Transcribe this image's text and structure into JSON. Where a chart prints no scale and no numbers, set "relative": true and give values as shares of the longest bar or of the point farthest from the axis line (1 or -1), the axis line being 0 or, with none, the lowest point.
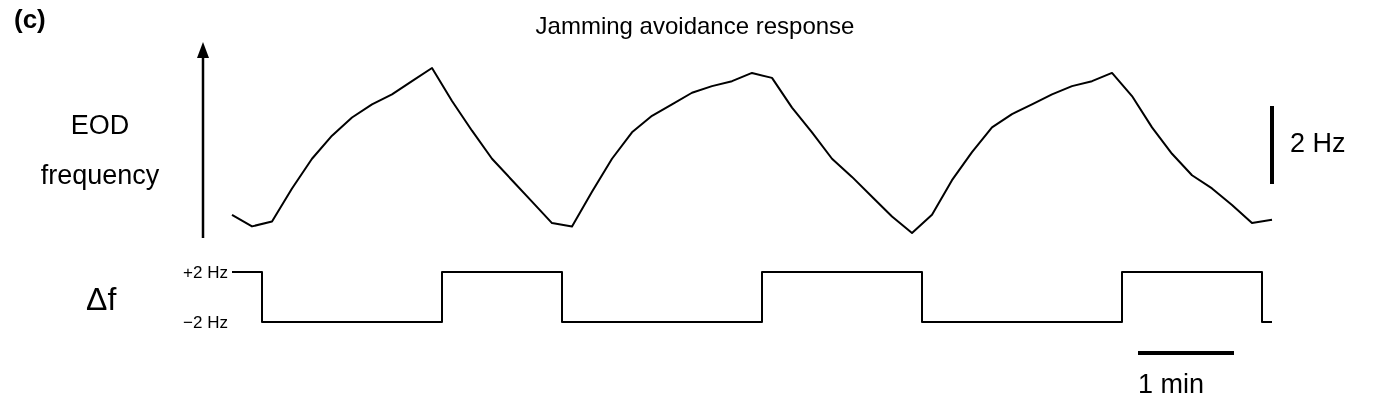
{
  "chart_data": [
    {
      "type": "line",
      "title": "Jamming avoidance response",
      "ylabel": "EOD frequency",
      "relative": true,
      "tick_labels": false,
      "marker": "none",
      "line_style": "solid",
      "annotations": [
        "(c)",
        "2 Hz"
      ],
      "categories": [
        null,
        null,
        null,
        null,
        null,
        null,
        null,
        null,
        null,
        null,
        null,
        null,
        null,
        null,
        null,
        null,
        null,
        null,
        null,
        null,
        null,
        null,
        null,
        null,
        null,
        null,
        null,
        null,
        null,
        null,
        null,
        null,
        null,
        null,
        null,
        null,
        null,
        null,
        null,
        null,
        null,
        null,
        null,
        null,
        null,
        null,
        null,
        null,
        null,
        null,
        null,
        null,
        null
      ],
      "series": [
        {
          "color": "#000000",
          "values": [
            0.11,
            0.04,
            0.07,
            0.27,
            0.45,
            0.59,
            0.7,
            0.78,
            0.84,
            0.92,
            1.0,
            0.8,
            0.62,
            0.45,
            0.32,
            0.19,
            0.06,
            0.04,
            0.25,
            0.45,
            0.61,
            0.71,
            0.78,
            0.85,
            0.89,
            0.92,
            0.97,
            0.94,
            0.76,
            0.61,
            0.45,
            0.34,
            0.22,
            0.1,
            0,
            0.11,
            0.32,
            0.49,
            0.64,
            0.72,
            0.78,
            0.84,
            0.89,
            0.92,
            0.97,
            0.83,
            0.64,
            0.48,
            0.35,
            0.27,
            0.17,
            0.06,
            0.08
          ]
        }
      ]
    },
    {
      "type": "step",
      "ylabel": "Δf",
      "tick_labels": "y",
      "marker": "none",
      "line_style": "solid",
      "annotations": [
        "1 min"
      ],
      "categories": [
        null,
        null,
        null,
        null,
        null,
        null,
        null,
        null,
        null,
        null,
        null,
        null,
        null,
        null,
        null,
        null,
        null,
        null,
        null,
        null,
        null,
        null,
        null,
        null,
        null,
        null,
        null,
        null,
        null,
        null,
        null,
        null,
        null,
        null,
        null,
        null,
        null,
        null,
        null,
        null,
        null,
        null,
        null,
        null,
        null,
        null,
        null,
        null,
        null,
        null,
        null,
        null,
        null
      ],
      "ylim": [
        -2,
        2
      ],
      "yticks": [
        {
          "value": -2,
          "label": "−2 Hz"
        },
        {
          "value": 2,
          "label": "+2 Hz"
        }
      ],
      "series": [
        {
          "color": "#000000",
          "values": [
            2,
            2,
            -2,
            -2,
            -2,
            -2,
            -2,
            -2,
            -2,
            -2,
            -2,
            2,
            2,
            2,
            2,
            2,
            2,
            -2,
            -2,
            -2,
            -2,
            -2,
            -2,
            -2,
            -2,
            -2,
            -2,
            2,
            2,
            2,
            2,
            2,
            2,
            2,
            2,
            -2,
            -2,
            -2,
            -2,
            -2,
            -2,
            -2,
            -2,
            -2,
            -2,
            2,
            2,
            2,
            2,
            2,
            2,
            2,
            -2
          ]
        }
      ]
    }
  ]
}
